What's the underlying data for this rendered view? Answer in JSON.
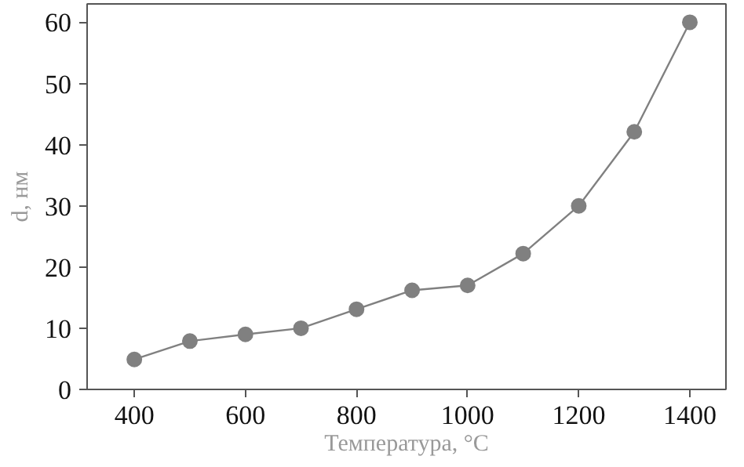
{
  "chart_data": {
    "type": "line",
    "xlabel": "Температура, °C",
    "ylabel": "d, нм",
    "x": [
      400,
      500,
      600,
      700,
      800,
      900,
      1000,
      1100,
      1200,
      1300,
      1400
    ],
    "series": [
      {
        "color": "#808080",
        "values": [
          4.9,
          7.9,
          9.0,
          10.0,
          13.1,
          16.2,
          17.0,
          22.2,
          30.0,
          42.1,
          60.0
        ]
      }
    ],
    "xlim": [
      315,
      1465
    ],
    "ylim": [
      0,
      63
    ],
    "xticks": [
      400,
      600,
      800,
      1000,
      1200,
      1400
    ],
    "yticks": [
      0,
      10,
      20,
      30,
      40,
      50,
      60
    ],
    "grid": false,
    "marker": "circle",
    "line_style": "solid"
  }
}
